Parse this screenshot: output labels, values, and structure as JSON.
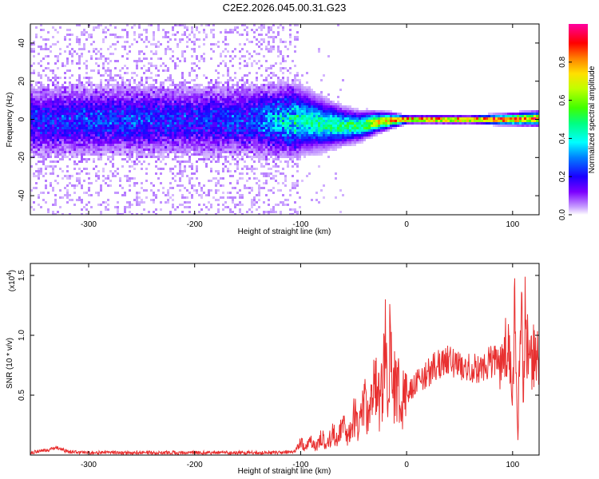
{
  "title": "C2E2.2026.045.00.31.G23",
  "colors": {
    "line": "#e83030",
    "axis": "#000000",
    "background": "#ffffff"
  },
  "chart_data": [
    {
      "type": "heatmap",
      "title": "C2E2.2026.045.00.31.G23",
      "xlabel": "Height of straight line (km)",
      "ylabel": "Frequency (Hz)",
      "xlim": [
        -355,
        125
      ],
      "ylim": [
        -50,
        50
      ],
      "xticks": [
        -300,
        -200,
        -100,
        0,
        100
      ],
      "xtick_labels": [
        "-300",
        "-200",
        "-100",
        "0",
        "100"
      ],
      "yticks": [
        -40,
        -20,
        0,
        20,
        40
      ],
      "ytick_labels": [
        "-40",
        "-20",
        "0",
        "20",
        "40"
      ],
      "colorbar": {
        "label": "Normalized spectral amplitude",
        "range": [
          0,
          1
        ],
        "ticks": [
          0.0,
          0.2,
          0.4,
          0.6,
          0.8
        ],
        "tick_labels": [
          "0.0",
          "0.2",
          "0.4",
          "0.6",
          "0.8"
        ]
      },
      "description_profile": {
        "x": [
          -355,
          -300,
          -250,
          -200,
          -150,
          -130,
          -100,
          -80,
          -60,
          -45,
          -30,
          -15,
          0,
          30,
          60,
          90,
          125
        ],
        "center_freq": [
          0,
          0,
          0,
          0,
          0,
          0,
          0,
          -2,
          -3,
          -3,
          -1,
          0,
          0.5,
          0.5,
          0.5,
          0.5,
          1
        ],
        "peak_amplitude": [
          0.2,
          0.22,
          0.22,
          0.2,
          0.22,
          0.3,
          0.42,
          0.48,
          0.5,
          0.55,
          0.7,
          0.85,
          0.95,
          0.95,
          0.9,
          0.92,
          0.88
        ],
        "spread_hz": [
          48,
          48,
          48,
          48,
          48,
          48,
          18,
          14,
          10,
          8,
          6,
          4,
          2,
          2,
          2,
          3,
          4
        ]
      }
    },
    {
      "type": "line",
      "xlabel": "Height of straight line (km)",
      "ylabel": "SNR (10 * v/v)",
      "y_scale_label": "(x10",
      "y_scale_exp": "4",
      "y_scale_suffix": ")",
      "xlim": [
        -355,
        125
      ],
      "ylim": [
        0,
        1.6
      ],
      "xticks": [
        -300,
        -200,
        -100,
        0,
        100
      ],
      "xtick_labels": [
        "-300",
        "-200",
        "-100",
        "0",
        "100"
      ],
      "yticks": [
        0.5,
        1.0,
        1.5
      ],
      "ytick_labels": [
        "0.5",
        "1.0",
        "1.5"
      ],
      "series": [
        {
          "name": "SNR",
          "x": [
            -355,
            -340,
            -330,
            -320,
            -300,
            -280,
            -250,
            -200,
            -150,
            -120,
            -105,
            -100,
            -95,
            -90,
            -85,
            -80,
            -75,
            -70,
            -65,
            -60,
            -55,
            -50,
            -45,
            -40,
            -35,
            -30,
            -25,
            -20,
            -18,
            -15,
            -12,
            -10,
            -5,
            0,
            5,
            10,
            20,
            30,
            40,
            50,
            60,
            70,
            80,
            90,
            95,
            100,
            102,
            105,
            108,
            110,
            112,
            115,
            120,
            125
          ],
          "y": [
            0.02,
            0.04,
            0.06,
            0.03,
            0.02,
            0.02,
            0.02,
            0.02,
            0.02,
            0.02,
            0.03,
            0.1,
            0.06,
            0.12,
            0.07,
            0.15,
            0.08,
            0.2,
            0.12,
            0.25,
            0.15,
            0.35,
            0.22,
            0.45,
            0.3,
            0.6,
            0.4,
            0.85,
            0.5,
            1.02,
            0.55,
            0.6,
            0.45,
            0.5,
            0.55,
            0.62,
            0.68,
            0.76,
            0.8,
            0.75,
            0.72,
            0.74,
            0.78,
            0.82,
            0.95,
            0.5,
            1.15,
            0.1,
            1.58,
            0.3,
            1.3,
            0.7,
            0.85,
            0.8
          ]
        }
      ]
    }
  ]
}
